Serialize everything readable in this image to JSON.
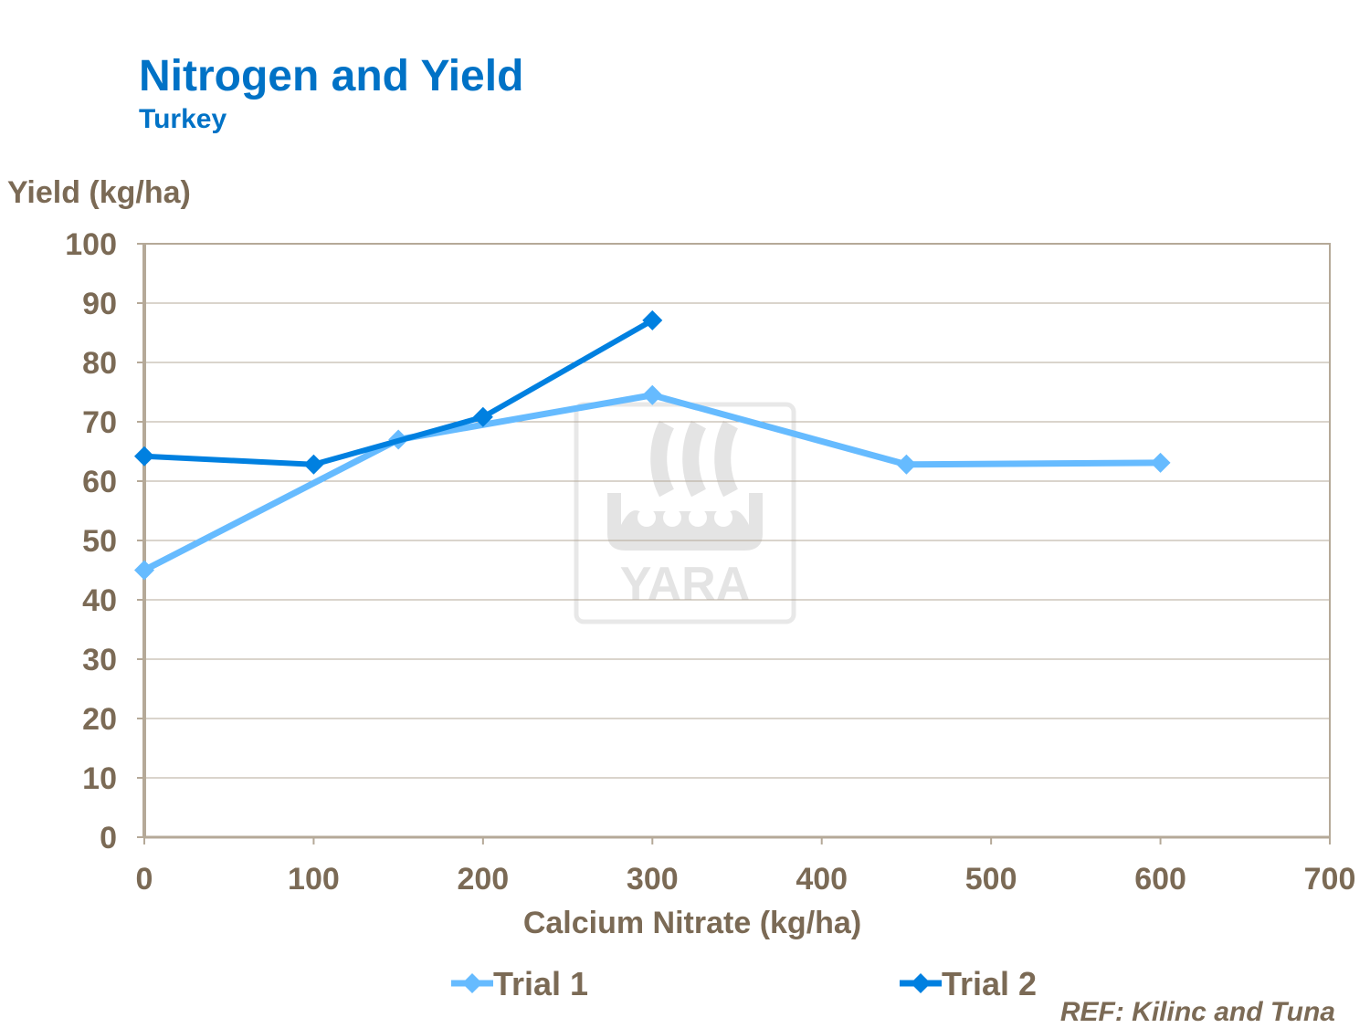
{
  "chart_data": {
    "type": "line",
    "title": "Nitrogen and Yield",
    "subtitle": "Turkey",
    "xlabel": "Calcium Nitrate (kg/ha)",
    "ylabel": "Yield (kg/ha)",
    "xlim": [
      0,
      700
    ],
    "ylim": [
      0,
      100
    ],
    "xticks": [
      0,
      100,
      200,
      300,
      400,
      500,
      600,
      700
    ],
    "yticks": [
      0,
      10,
      20,
      30,
      40,
      50,
      60,
      70,
      80,
      90,
      100
    ],
    "grid": "horizontal",
    "legend_placement": "bottom",
    "series": [
      {
        "name": "Trial 1",
        "color": "#66BBFF",
        "marker": "diamond",
        "x": [
          0,
          150,
          300,
          450,
          600
        ],
        "y": [
          45,
          67,
          74.5,
          62.8,
          63.1
        ]
      },
      {
        "name": "Trial 2",
        "color": "#0080E0",
        "marker": "diamond",
        "x": [
          0,
          100,
          200,
          300
        ],
        "y": [
          64.2,
          62.8,
          70.8,
          87.1
        ]
      }
    ],
    "annotation": "REF: Kilinc and Tuna",
    "watermark": "YARA"
  },
  "colors": {
    "title": "#0072C6",
    "axis_text": "#7B6A55",
    "grid": "#B5A998"
  }
}
